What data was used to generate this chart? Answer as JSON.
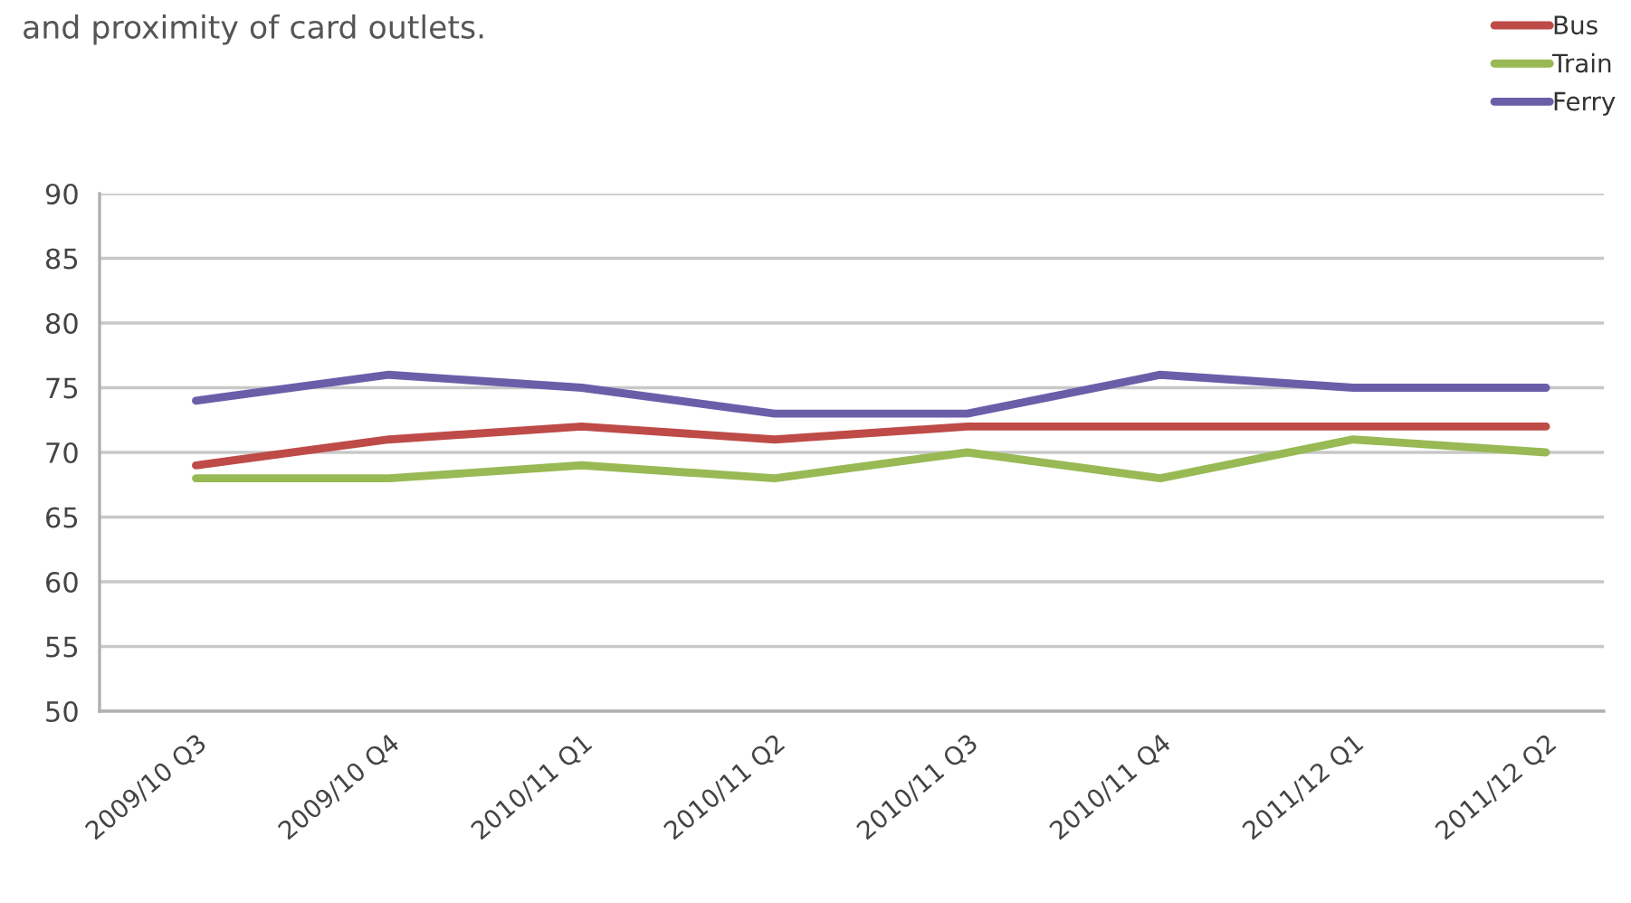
{
  "chart_data": {
    "type": "line",
    "annotations": [
      "and proximity of card outlets."
    ],
    "categories": [
      "2009/10 Q3",
      "2009/10 Q4",
      "2010/11 Q1",
      "2010/11 Q2",
      "2010/11 Q3",
      "2010/11 Q4",
      "2011/12 Q1",
      "2011/12 Q2"
    ],
    "series": [
      {
        "name": "Bus",
        "color": "#be4b48",
        "values": [
          69,
          71,
          72,
          71,
          72,
          72,
          72,
          72
        ]
      },
      {
        "name": "Train",
        "color": "#98b954",
        "values": [
          68,
          68,
          69,
          68,
          70,
          68,
          71,
          70
        ]
      },
      {
        "name": "Ferry",
        "color": "#6b5ea9",
        "values": [
          74,
          76,
          75,
          73,
          73,
          76,
          75,
          75
        ]
      }
    ],
    "ylim": [
      50,
      90
    ],
    "yticks": [
      50,
      55,
      60,
      65,
      70,
      75,
      80,
      85,
      90
    ],
    "grid": "y",
    "legend": "top right"
  }
}
